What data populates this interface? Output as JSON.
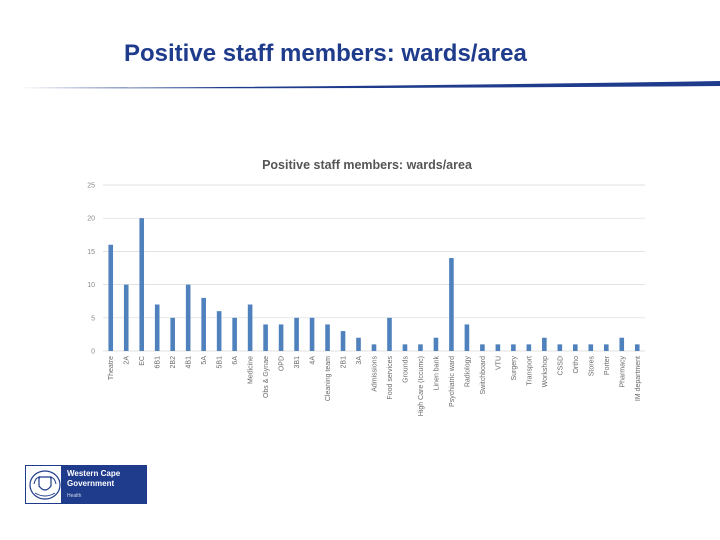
{
  "slide": {
    "title": "Positive staff members: wards/area"
  },
  "logo": {
    "line1": "Western Cape",
    "line2": "Government",
    "line3": "Health"
  },
  "colors": {
    "title": "#1f3b8c",
    "bar": "#4f81bd",
    "gridline": "#d9d9d9",
    "rule": "#1f3b8c"
  },
  "chart_data": {
    "type": "bar",
    "title": "Positive staff members: wards/area",
    "xlabel": "",
    "ylabel": "",
    "ylim": [
      0,
      25
    ],
    "yticks": [
      0,
      5,
      10,
      15,
      20,
      25
    ],
    "grid": true,
    "legend": "none",
    "categories": [
      "Theatre",
      "2A",
      "EC",
      "6B1",
      "2B2",
      "4B1",
      "5A",
      "5B1",
      "6A",
      "Medicine",
      "Obs & Gynae",
      "OPD",
      "3B1",
      "4A",
      "Cleaning team",
      "2B1",
      "3A",
      "Admissions",
      "Food services",
      "Grounds",
      "High Care (Iccumc)",
      "Linen bank",
      "Psychiatric ward",
      "Radiology",
      "Switchboard",
      "VTU",
      "Surgery",
      "Transport",
      "Workshop",
      "CSSD",
      "Ortho",
      "Stores",
      "Porter",
      "Pharmacy",
      "IM department"
    ],
    "values": [
      16,
      10,
      20,
      7,
      5,
      10,
      8,
      6,
      5,
      7,
      4,
      4,
      5,
      5,
      4,
      3,
      2,
      1,
      5,
      1,
      1,
      2,
      14,
      4,
      1,
      1,
      1,
      1,
      2,
      1,
      1,
      1,
      1,
      2,
      1
    ]
  }
}
